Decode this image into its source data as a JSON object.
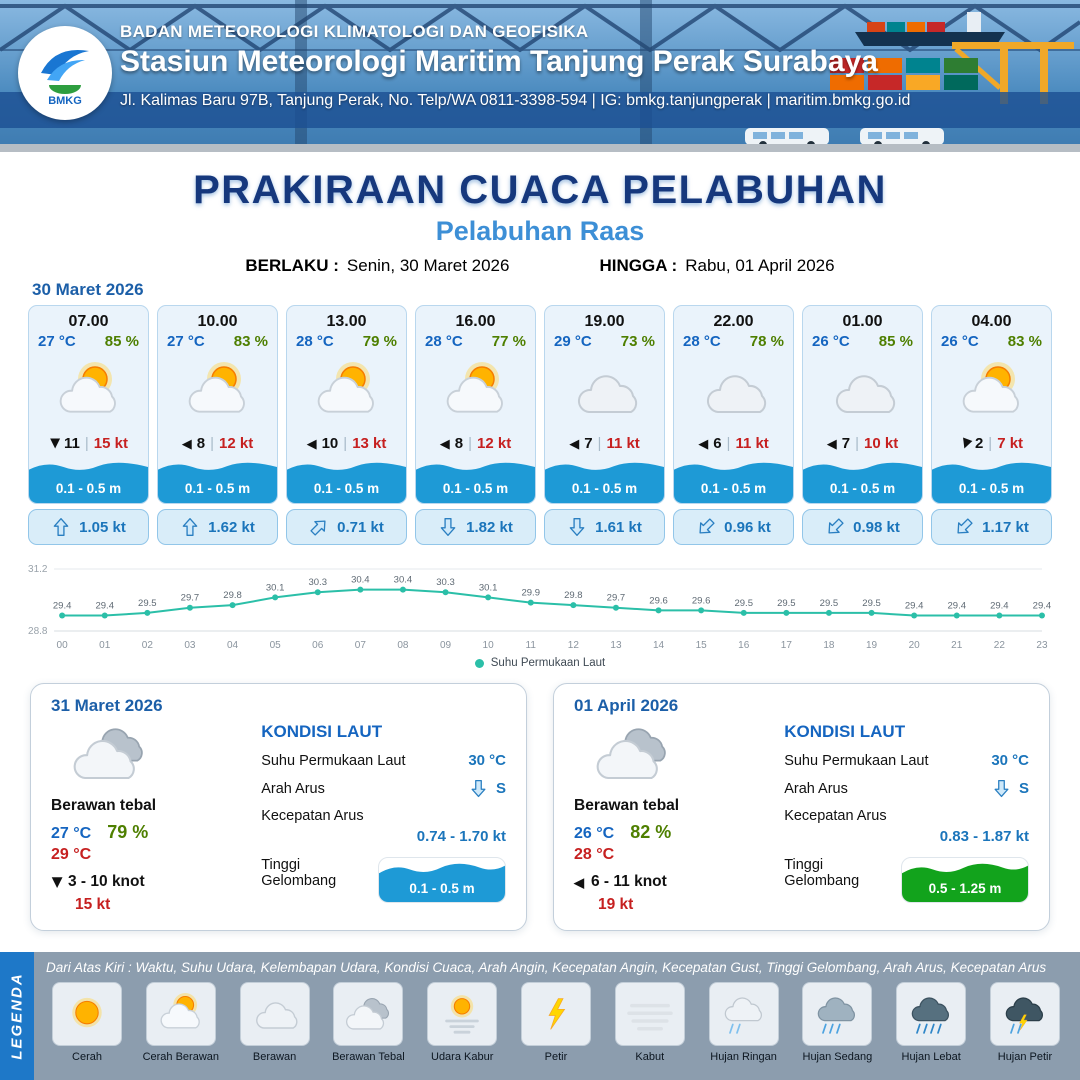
{
  "header": {
    "logo_text": "BMKG",
    "org": "BADAN METEOROLOGI KLIMATOLOGI DAN GEOFISIKA",
    "station": "Stasiun Meteorologi Maritim Tanjung Perak Surabaya",
    "address": "Jl. Kalimas Baru 97B, Tanjung Perak, No. Telp/WA 0811-3398-594 | IG: bmkg.tanjungperak | maritim.bmkg.go.id"
  },
  "title": {
    "main": "PRAKIRAAN CUACA PELABUHAN",
    "port": "Pelabuhan Raas",
    "valid_from_label": "BERLAKU :",
    "valid_from": "Senin, 30 Maret 2026",
    "valid_to_label": "HINGGA :",
    "valid_to": "Rabu, 01 April 2026"
  },
  "icons": {
    "wind_arrow": "◀"
  },
  "colors": {
    "accent_blue": "#1565c0",
    "humidity_green": "#4e7f00",
    "gust_red": "#c62020",
    "wave_blue": "#1e9ad6",
    "wave_green": "#12a31c",
    "chart_teal": "#2bbfa8",
    "legend_bg": "#8c9dae",
    "legend_strip_blue": "#1e78c8"
  },
  "hourly": {
    "date": "30 Maret 2026",
    "cards": [
      {
        "time": "07.00",
        "temp": "27 °C",
        "humidity": "85 %",
        "icon": "cerah-berawan",
        "wind_speed": "11",
        "gust": "15 kt",
        "wind_deg": -90,
        "wave": "0.1 - 0.5 m",
        "current": "1.05 kt",
        "current_deg": 0
      },
      {
        "time": "10.00",
        "temp": "27 °C",
        "humidity": "83 %",
        "icon": "cerah-berawan",
        "wind_speed": "8",
        "gust": "12 kt",
        "wind_deg": 0,
        "wave": "0.1 - 0.5 m",
        "current": "1.62 kt",
        "current_deg": 0
      },
      {
        "time": "13.00",
        "temp": "28 °C",
        "humidity": "79 %",
        "icon": "cerah-berawan",
        "wind_speed": "10",
        "gust": "13 kt",
        "wind_deg": 0,
        "wave": "0.1 - 0.5 m",
        "current": "0.71 kt",
        "current_deg": 45
      },
      {
        "time": "16.00",
        "temp": "28 °C",
        "humidity": "77 %",
        "icon": "cerah-berawan",
        "wind_speed": "8",
        "gust": "12 kt",
        "wind_deg": 0,
        "wave": "0.1 - 0.5 m",
        "current": "1.82 kt",
        "current_deg": 180
      },
      {
        "time": "19.00",
        "temp": "29 °C",
        "humidity": "73 %",
        "icon": "berawan",
        "wind_speed": "7",
        "gust": "11 kt",
        "wind_deg": 0,
        "wave": "0.1 - 0.5 m",
        "current": "1.61 kt",
        "current_deg": 180
      },
      {
        "time": "22.00",
        "temp": "28 °C",
        "humidity": "78 %",
        "icon": "berawan",
        "wind_speed": "6",
        "gust": "11 kt",
        "wind_deg": 0,
        "wave": "0.1 - 0.5 m",
        "current": "0.96 kt",
        "current_deg": 225
      },
      {
        "time": "01.00",
        "temp": "26 °C",
        "humidity": "85 %",
        "icon": "berawan",
        "wind_speed": "7",
        "gust": "10 kt",
        "wind_deg": 0,
        "wave": "0.1 - 0.5 m",
        "current": "0.98 kt",
        "current_deg": 225
      },
      {
        "time": "04.00",
        "temp": "26 °C",
        "humidity": "83 %",
        "icon": "cerah-berawan",
        "wind_speed": "2",
        "gust": "7 kt",
        "wind_deg": -70,
        "wave": "0.1 - 0.5 m",
        "current": "1.17 kt",
        "current_deg": 225
      }
    ]
  },
  "chart_data": {
    "type": "line",
    "series_name": "Suhu Permukaan Laut",
    "x": [
      "00",
      "01",
      "02",
      "03",
      "04",
      "05",
      "06",
      "07",
      "08",
      "09",
      "10",
      "11",
      "12",
      "13",
      "14",
      "15",
      "16",
      "17",
      "18",
      "19",
      "20",
      "21",
      "22",
      "23"
    ],
    "values": [
      29.4,
      29.4,
      29.5,
      29.7,
      29.8,
      30.1,
      30.3,
      30.4,
      30.4,
      30.3,
      30.1,
      29.9,
      29.8,
      29.7,
      29.6,
      29.6,
      29.5,
      29.5,
      29.5,
      29.5,
      29.4,
      29.4,
      29.4,
      29.4
    ],
    "ylim": [
      28.8,
      31.2
    ],
    "line_color": "#2bbfa8",
    "grid": true,
    "legend_position": "bottom"
  },
  "daily": [
    {
      "date": "31 Maret 2026",
      "icon": "berawan-tebal",
      "condition": "Berawan tebal",
      "temp_min": "27 °C",
      "humidity": "79 %",
      "temp_max": "29 °C",
      "wind_range": "3  - 10 knot",
      "wind_deg": -90,
      "gust": "15 kt",
      "sea": {
        "heading": "KONDISI LAUT",
        "sst_label": "Suhu Permukaan Laut",
        "sst": "30 °C",
        "current_dir_label": "Arah Arus",
        "current_dir": "S",
        "current_deg": 180,
        "current_speed_label": "Kecepatan Arus",
        "current_speed": "0.74  - 1.70 kt",
        "wave_label": "Tinggi Gelombang",
        "wave": "0.1 - 0.5 m",
        "wave_color": "#1e9ad6"
      }
    },
    {
      "date": "01 April 2026",
      "icon": "berawan-tebal",
      "condition": "Berawan tebal",
      "temp_min": "26 °C",
      "humidity": "82 %",
      "temp_max": "28 °C",
      "wind_range": "6  - 11 knot",
      "wind_deg": 0,
      "gust": "19 kt",
      "sea": {
        "heading": "KONDISI LAUT",
        "sst_label": "Suhu Permukaan Laut",
        "sst": "30 °C",
        "current_dir_label": "Arah Arus",
        "current_dir": "S",
        "current_deg": 180,
        "current_speed_label": "Kecepatan Arus",
        "current_speed": "0.83  - 1.87 kt",
        "wave_label": "Tinggi Gelombang",
        "wave": "0.5 - 1.25 m",
        "wave_color": "#12a31c"
      }
    }
  ],
  "legend": {
    "title": "LEGENDA",
    "description": "Dari Atas Kiri : Waktu, Suhu Udara, Kelembapan Udara, Kondisi Cuaca, Arah Angin, Kecepatan Angin, Kecepatan Gust, Tinggi Gelombang, Arah Arus, Kecepatan Arus",
    "items": [
      {
        "label": "Cerah",
        "icon": "cerah"
      },
      {
        "label": "Cerah Berawan",
        "icon": "cerah-berawan"
      },
      {
        "label": "Berawan",
        "icon": "berawan"
      },
      {
        "label": "Berawan Tebal",
        "icon": "berawan-tebal"
      },
      {
        "label": "Udara Kabur",
        "icon": "udara-kabur"
      },
      {
        "label": "Petir",
        "icon": "petir"
      },
      {
        "label": "Kabut",
        "icon": "kabut"
      },
      {
        "label": "Hujan Ringan",
        "icon": "hujan-ringan"
      },
      {
        "label": "Hujan Sedang",
        "icon": "hujan-sedang"
      },
      {
        "label": "Hujan Lebat",
        "icon": "hujan-lebat"
      },
      {
        "label": "Hujan Petir",
        "icon": "hujan-petir"
      }
    ]
  }
}
